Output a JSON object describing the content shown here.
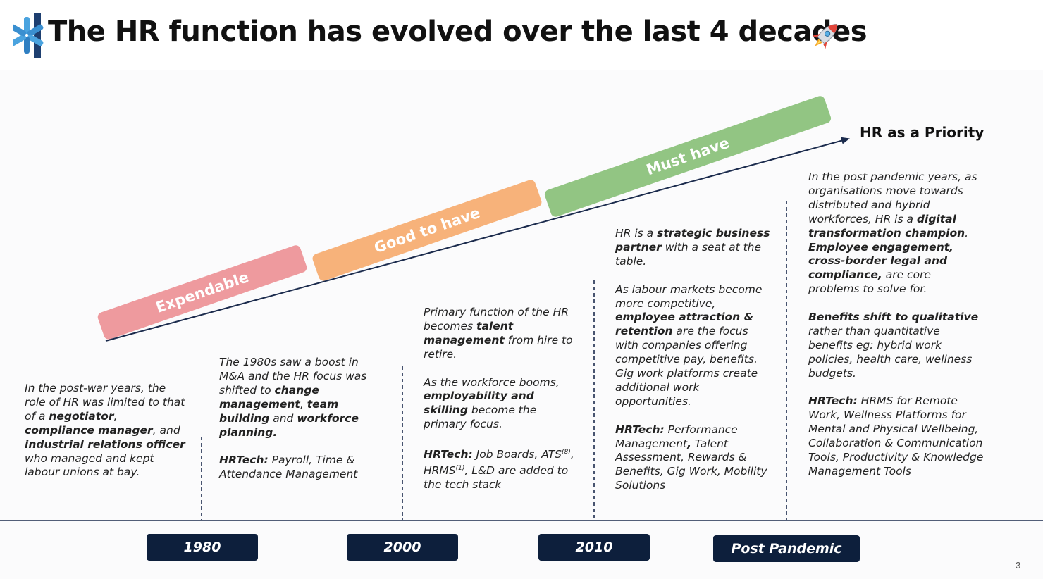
{
  "title": "The HR function has evolved over the last 4 decades",
  "icons": {
    "logo": "asterisk-logo",
    "rocket": "rocket-icon"
  },
  "colors": {
    "expendable": "#ee9a9e",
    "good_to_have": "#f7b27a",
    "must_have": "#92c583",
    "era_label_bg": "#0d1f3c",
    "arrow": "#1b2b4d"
  },
  "stages": [
    {
      "label": "Expendable"
    },
    {
      "label": "Good to have"
    },
    {
      "label": "Must have"
    }
  ],
  "arrow_label": "HR as a Priority",
  "columns": [
    {
      "paragraphs": [
        {
          "runs": [
            {
              "t": "In the post-war years, the role of HR was limited to that of a ",
              "b": false
            },
            {
              "t": "negotiator",
              "b": true
            },
            {
              "t": ", ",
              "b": false
            },
            {
              "t": "compliance manager",
              "b": true
            },
            {
              "t": ", and ",
              "b": false
            },
            {
              "t": "industrial relations officer",
              "b": true
            },
            {
              "t": " who managed and kept labour unions at bay.",
              "b": false
            }
          ]
        }
      ]
    },
    {
      "paragraphs": [
        {
          "runs": [
            {
              "t": "The 1980s saw a boost in M&A and the HR focus was shifted to ",
              "b": false
            },
            {
              "t": "change management",
              "b": true
            },
            {
              "t": ", ",
              "b": false
            },
            {
              "t": "team building",
              "b": true
            },
            {
              "t": " and ",
              "b": false
            },
            {
              "t": "workforce planning.",
              "b": true
            }
          ]
        },
        {
          "runs": [
            {
              "t": "HRTech:",
              "b": true
            },
            {
              "t": " Payroll, Time & Attendance Management",
              "b": false
            }
          ]
        }
      ]
    },
    {
      "paragraphs": [
        {
          "runs": [
            {
              "t": "Primary function of the HR becomes ",
              "b": false
            },
            {
              "t": "talent management",
              "b": true
            },
            {
              "t": " from hire to retire.",
              "b": false
            }
          ]
        },
        {
          "runs": [
            {
              "t": "As the workforce booms, ",
              "b": false
            },
            {
              "t": "employability and skilling",
              "b": true
            },
            {
              "t": " become the primary focus.",
              "b": false
            }
          ]
        },
        {
          "runs": [
            {
              "t": "HRTech:",
              "b": true
            },
            {
              "t": " Job Boards, ATS",
              "b": false
            },
            {
              "t": "(8)",
              "sup": true
            },
            {
              "t": ", HRMS",
              "b": false
            },
            {
              "t": "(1)",
              "sup": true
            },
            {
              "t": ", L&D are added to the tech stack",
              "b": false
            }
          ]
        }
      ]
    },
    {
      "paragraphs": [
        {
          "runs": [
            {
              "t": "HR is a ",
              "b": false
            },
            {
              "t": "strategic business partner",
              "b": true
            },
            {
              "t": " with a seat at the table.",
              "b": false
            }
          ]
        },
        {
          "runs": [
            {
              "t": "As labour markets become more competitive,  ",
              "b": false
            },
            {
              "t": "employee attraction & retention",
              "b": true
            },
            {
              "t": " are the focus with companies offering competitive pay, benefits. Gig work platforms create additional work opportunities.",
              "b": false
            }
          ]
        },
        {
          "runs": [
            {
              "t": "HRTech:",
              "b": true
            },
            {
              "t": " Performance Management",
              "b": false
            },
            {
              "t": ",",
              "b": true
            },
            {
              "t": " Talent Assessment, Rewards & Benefits, Gig Work, Mobility Solutions",
              "b": false
            }
          ]
        }
      ]
    },
    {
      "paragraphs": [
        {
          "runs": [
            {
              "t": "In the post pandemic years, as organisations move towards distributed and hybrid workforces, HR is a ",
              "b": false
            },
            {
              "t": "digital transformation champion",
              "b": true
            },
            {
              "t": ". ",
              "b": false
            },
            {
              "t": "Employee engagement, cross-border legal and compliance,",
              "b": true
            },
            {
              "t": " are core problems to solve for.",
              "b": false
            }
          ]
        },
        {
          "runs": [
            {
              "t": "Benefits shift to qualitative",
              "b": true
            },
            {
              "t": " rather than quantitative benefits eg: hybrid work policies, health care, wellness budgets.",
              "b": false
            }
          ]
        },
        {
          "runs": [
            {
              "t": "HRTech:",
              "b": true
            },
            {
              "t": " HRMS for Remote Work, Wellness Platforms for Mental and Physical Wellbeing, Collaboration & Communication Tools, Productivity & Knowledge Management Tools",
              "b": false
            }
          ]
        }
      ]
    }
  ],
  "eras": [
    "1980",
    "2000",
    "2010",
    "Post Pandemic"
  ],
  "page_number": "3"
}
